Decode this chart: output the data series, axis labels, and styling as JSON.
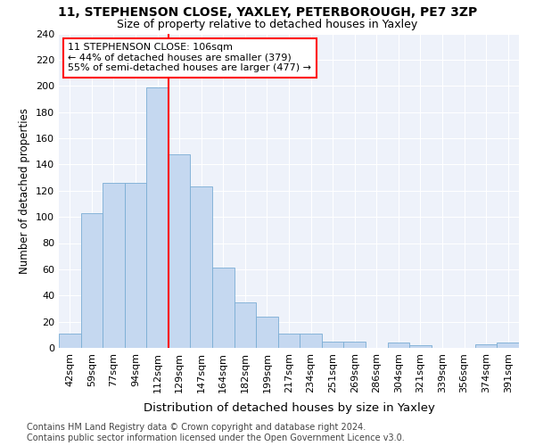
{
  "title": "11, STEPHENSON CLOSE, YAXLEY, PETERBOROUGH, PE7 3ZP",
  "subtitle": "Size of property relative to detached houses in Yaxley",
  "xlabel": "Distribution of detached houses by size in Yaxley",
  "ylabel": "Number of detached properties",
  "categories": [
    "42sqm",
    "59sqm",
    "77sqm",
    "94sqm",
    "112sqm",
    "129sqm",
    "147sqm",
    "164sqm",
    "182sqm",
    "199sqm",
    "217sqm",
    "234sqm",
    "251sqm",
    "269sqm",
    "286sqm",
    "304sqm",
    "321sqm",
    "339sqm",
    "356sqm",
    "374sqm",
    "391sqm"
  ],
  "values": [
    11,
    103,
    126,
    126,
    199,
    148,
    123,
    61,
    35,
    24,
    11,
    11,
    5,
    5,
    0,
    4,
    2,
    0,
    0,
    3,
    4
  ],
  "bar_color": "#c5d8f0",
  "bar_edge_color": "#7aadd4",
  "vline_x_pos": 4.5,
  "vline_color": "red",
  "annotation_text": "11 STEPHENSON CLOSE: 106sqm\n← 44% of detached houses are smaller (379)\n55% of semi-detached houses are larger (477) →",
  "annotation_box_color": "white",
  "annotation_box_edge": "red",
  "ylim": [
    0,
    240
  ],
  "yticks": [
    0,
    20,
    40,
    60,
    80,
    100,
    120,
    140,
    160,
    180,
    200,
    220,
    240
  ],
  "background_color": "#eef2fa",
  "footer": "Contains HM Land Registry data © Crown copyright and database right 2024.\nContains public sector information licensed under the Open Government Licence v3.0.",
  "title_fontsize": 10,
  "subtitle_fontsize": 9,
  "xlabel_fontsize": 9.5,
  "ylabel_fontsize": 8.5,
  "tick_fontsize": 8,
  "annotation_fontsize": 8,
  "footer_fontsize": 7
}
